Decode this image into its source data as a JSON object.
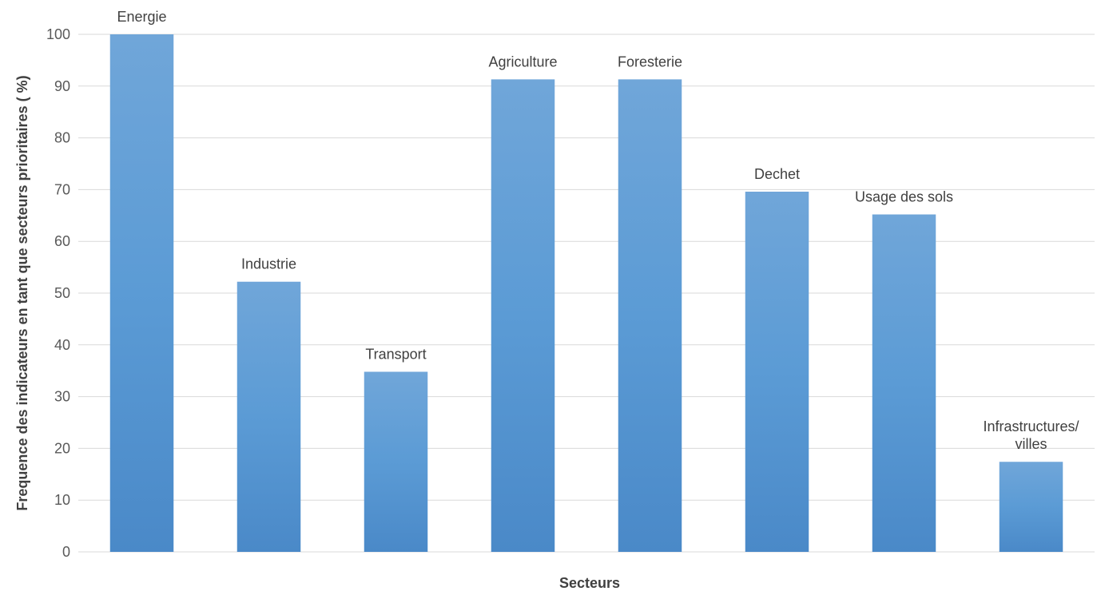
{
  "chart_data": {
    "type": "bar",
    "categories": [
      "Energie",
      "Industrie",
      "Transport",
      "Agriculture",
      "Foresterie",
      "Dechet",
      "Usage des sols",
      "Infrastructures/ villes"
    ],
    "category_label_lines": [
      [
        "Energie"
      ],
      [
        "Industrie"
      ],
      [
        "Transport"
      ],
      [
        "Agriculture"
      ],
      [
        "Foresterie"
      ],
      [
        "Dechet"
      ],
      [
        "Usage des sols"
      ],
      [
        "Infrastructures/",
        "villes"
      ]
    ],
    "values": [
      100,
      52.2,
      34.8,
      91.3,
      91.3,
      69.6,
      65.2,
      17.4
    ],
    "xlabel": "Secteurs",
    "ylabel": "Frequence des indicateurs en tant que secteurs prioritaires ( %)",
    "ylim": [
      0,
      100
    ],
    "yticks": [
      0,
      10,
      20,
      30,
      40,
      50,
      60,
      70,
      80,
      90,
      100
    ],
    "grid": true,
    "legend": "none",
    "bar_color_top": "#70a6d9",
    "bar_color_mid": "#5b9bd5",
    "bar_color_bottom": "#4a89c8"
  }
}
